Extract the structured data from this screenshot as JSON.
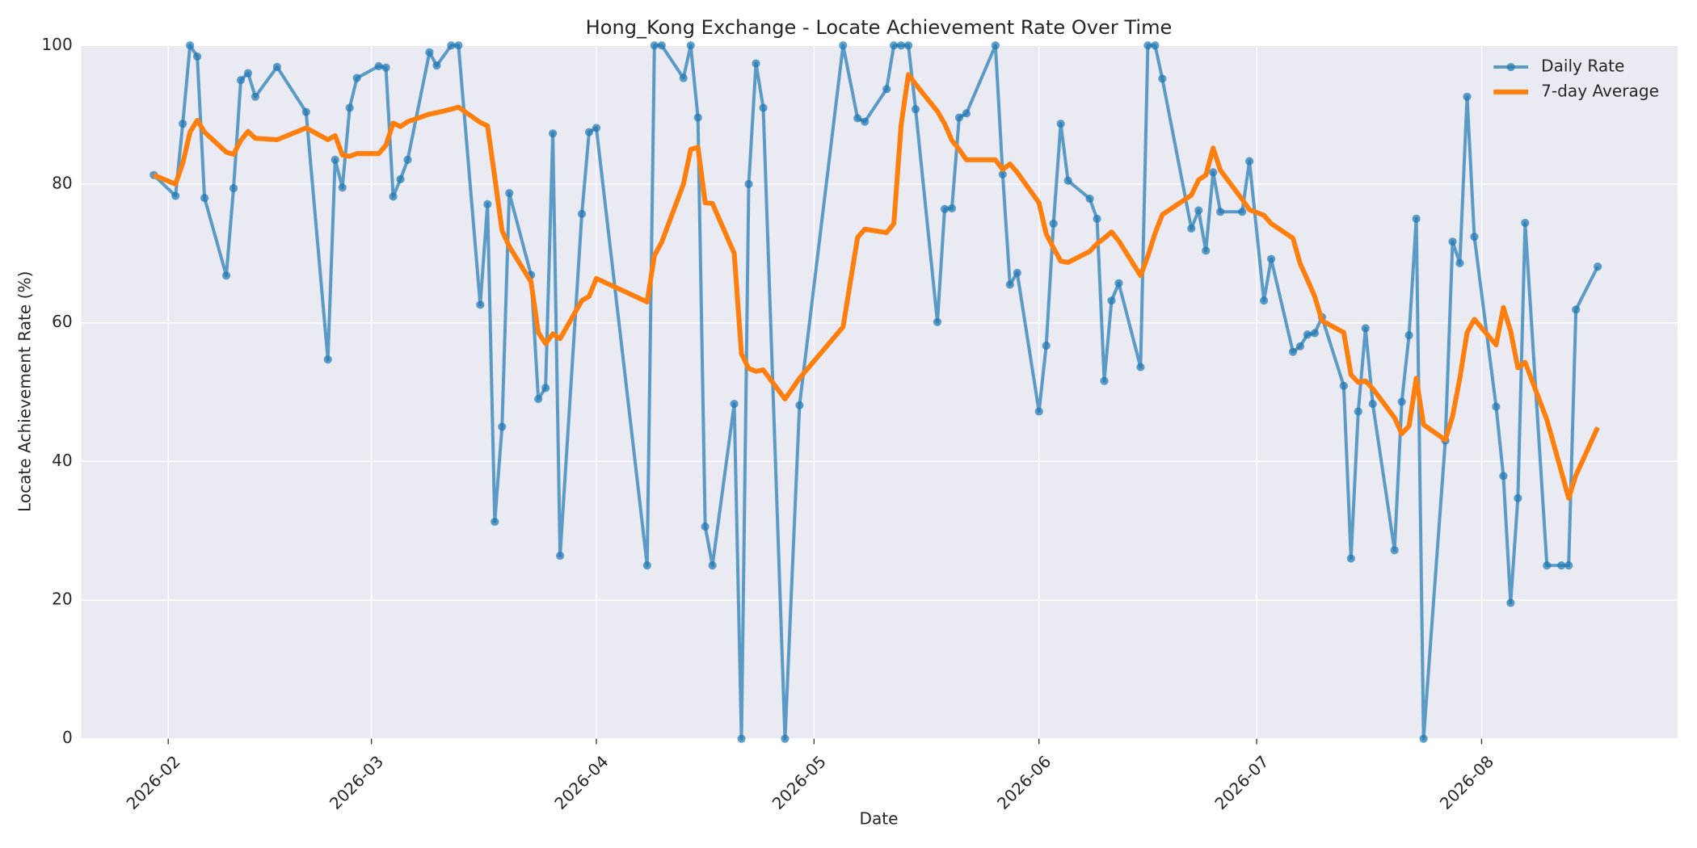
{
  "chart_data": {
    "type": "line",
    "title": "Hong_Kong Exchange - Locate Achievement Rate Over Time",
    "xlabel": "Date",
    "ylabel": "Locate Achievement Rate (%)",
    "x": [
      "2026-01-30",
      "2026-02-02",
      "2026-02-03",
      "2026-02-04",
      "2026-02-05",
      "2026-02-06",
      "2026-02-09",
      "2026-02-10",
      "2026-02-11",
      "2026-02-12",
      "2026-02-13",
      "2026-02-16",
      "2026-02-20",
      "2026-02-23",
      "2026-02-24",
      "2026-02-25",
      "2026-02-26",
      "2026-02-27",
      "2026-03-02",
      "2026-03-03",
      "2026-03-04",
      "2026-03-05",
      "2026-03-06",
      "2026-03-09",
      "2026-03-10",
      "2026-03-12",
      "2026-03-13",
      "2026-03-16",
      "2026-03-17",
      "2026-03-18",
      "2026-03-19",
      "2026-03-20",
      "2026-03-23",
      "2026-03-24",
      "2026-03-25",
      "2026-03-26",
      "2026-03-27",
      "2026-03-30",
      "2026-03-31",
      "2026-04-01",
      "2026-04-08",
      "2026-04-09",
      "2026-04-10",
      "2026-04-13",
      "2026-04-14",
      "2026-04-15",
      "2026-04-16",
      "2026-04-17",
      "2026-04-20",
      "2026-04-21",
      "2026-04-22",
      "2026-04-23",
      "2026-04-24",
      "2026-04-27",
      "2026-04-29",
      "2026-05-05",
      "2026-05-07",
      "2026-05-08",
      "2026-05-11",
      "2026-05-12",
      "2026-05-13",
      "2026-05-14",
      "2026-05-15",
      "2026-05-18",
      "2026-05-19",
      "2026-05-20",
      "2026-05-21",
      "2026-05-22",
      "2026-05-26",
      "2026-05-27",
      "2026-05-28",
      "2026-05-29",
      "2026-06-01",
      "2026-06-02",
      "2026-06-03",
      "2026-06-04",
      "2026-06-05",
      "2026-06-08",
      "2026-06-09",
      "2026-06-10",
      "2026-06-11",
      "2026-06-12",
      "2026-06-15",
      "2026-06-16",
      "2026-06-17",
      "2026-06-18",
      "2026-06-22",
      "2026-06-23",
      "2026-06-24",
      "2026-06-25",
      "2026-06-26",
      "2026-06-29",
      "2026-06-30",
      "2026-07-02",
      "2026-07-03",
      "2026-07-06",
      "2026-07-07",
      "2026-07-08",
      "2026-07-09",
      "2026-07-10",
      "2026-07-13",
      "2026-07-14",
      "2026-07-15",
      "2026-07-16",
      "2026-07-17",
      "2026-07-20",
      "2026-07-21",
      "2026-07-22",
      "2026-07-23",
      "2026-07-24",
      "2026-07-27",
      "2026-07-28",
      "2026-07-29",
      "2026-07-30",
      "2026-07-31",
      "2026-08-03",
      "2026-08-04",
      "2026-08-05",
      "2026-08-06",
      "2026-08-07",
      "2026-08-10",
      "2026-08-12",
      "2026-08-13",
      "2026-08-14",
      "2026-08-17"
    ],
    "series": [
      {
        "name": "Daily Rate",
        "color": "#1f77b4",
        "markers": true,
        "values": [
          81.3,
          78.3,
          88.7,
          100,
          98.4,
          78,
          66.8,
          79.4,
          95,
          96,
          92.6,
          96.9,
          90.4,
          54.7,
          83.5,
          79.5,
          91,
          95.3,
          97,
          96.8,
          78.2,
          80.7,
          83.5,
          99,
          97.1,
          100,
          100,
          62.6,
          77.1,
          31.3,
          45,
          78.7,
          66.9,
          49,
          50.6,
          87.3,
          26.4,
          75.7,
          87.5,
          88.1,
          25,
          100,
          100,
          95.3,
          100,
          89.6,
          30.6,
          25,
          48.3,
          0,
          80,
          97.4,
          91,
          0,
          48.1,
          100,
          89.5,
          89,
          93.7,
          100,
          100,
          100,
          90.8,
          60.1,
          76.4,
          76.5,
          89.6,
          90.2,
          100,
          81.4,
          65.5,
          67.2,
          47.2,
          56.7,
          74.3,
          88.7,
          80.5,
          77.9,
          75,
          51.6,
          63.2,
          65.7,
          53.6,
          100,
          100,
          95.2,
          73.6,
          76.2,
          70.4,
          81.7,
          76,
          76,
          83.3,
          63.2,
          69.2,
          55.8,
          56.6,
          58.3,
          58.5,
          60.8,
          50.9,
          26,
          47.2,
          59.2,
          48.3,
          27.2,
          48.6,
          58.2,
          75,
          0,
          43,
          71.7,
          68.6,
          92.6,
          72.4,
          47.9,
          37.9,
          19.6,
          34.7,
          74.4,
          25,
          25,
          25,
          61.9,
          68.1
        ]
      },
      {
        "name": "7-day Average",
        "color": "#ff7f0e",
        "markers": false,
        "values": [
          81.3,
          80,
          83,
          87.5,
          89.2,
          87.5,
          84.6,
          84.3,
          86.3,
          87.6,
          86.6,
          86.4,
          88.1,
          86.4,
          87,
          84.2,
          84,
          84.4,
          84.4,
          85.6,
          88.8,
          88.3,
          89,
          90.1,
          90.3,
          90.8,
          91.1,
          88.9,
          88.4,
          81,
          73.3,
          71,
          65.9,
          58.6,
          57,
          58.4,
          57.7,
          63.2,
          63.8,
          66.4,
          63,
          69.7,
          71.6,
          80,
          85,
          85.3,
          77.3,
          77.2,
          70,
          55.5,
          53.4,
          53,
          53.2,
          49,
          52,
          59.4,
          72.3,
          73.5,
          73,
          74.3,
          88.5,
          95.8,
          94.4,
          90.5,
          88.7,
          86.3,
          85,
          83.5,
          83.5,
          82.1,
          82.9,
          81.7,
          77.3,
          72.8,
          70.8,
          68.9,
          68.7,
          70.3,
          71.4,
          72.2,
          73.1,
          71.8,
          66.8,
          69.6,
          72.9,
          75.6,
          78.4,
          80.6,
          81.3,
          85.2,
          82,
          77.8,
          76.3,
          75.5,
          74.3,
          72.2,
          68.5,
          66.2,
          63.8,
          60.3,
          58.6,
          52.5,
          51.4,
          51.6,
          50.5,
          46.3,
          44,
          45.1,
          52,
          45.3,
          43.1,
          46.5,
          52,
          58.6,
          60.5,
          56.8,
          62.2,
          58.8,
          53.5,
          54.3,
          46,
          38.5,
          34.7,
          38,
          44.9
        ]
      }
    ],
    "xlim": [
      "2026-01-20",
      "2026-08-28"
    ],
    "xticks": [
      {
        "value": "2026-02-01",
        "label": "2026-02"
      },
      {
        "value": "2026-03-01",
        "label": "2026-03"
      },
      {
        "value": "2026-04-01",
        "label": "2026-04"
      },
      {
        "value": "2026-05-01",
        "label": "2026-05"
      },
      {
        "value": "2026-06-01",
        "label": "2026-06"
      },
      {
        "value": "2026-07-01",
        "label": "2026-07"
      },
      {
        "value": "2026-08-01",
        "label": "2026-08"
      }
    ],
    "ylim": [
      0,
      100
    ],
    "yticks": [
      0,
      20,
      40,
      60,
      80,
      100
    ],
    "grid": true,
    "legend": "upper right"
  }
}
